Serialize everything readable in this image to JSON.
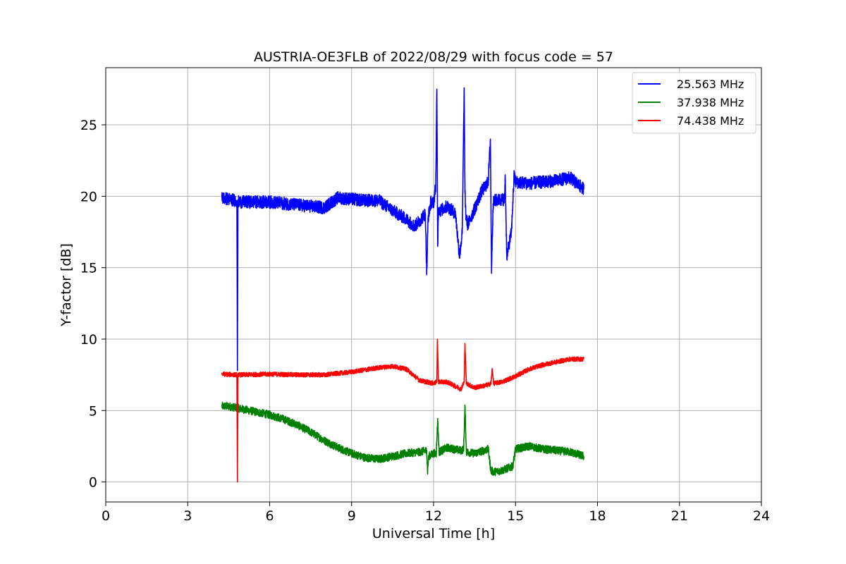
{
  "chart_data": {
    "type": "line",
    "title": "AUSTRIA-OE3FLB of 2022/08/29 with focus code = 57",
    "xlabel": "Universal Time [h]",
    "ylabel": "Y-factor [dB]",
    "xlim": [
      0,
      24
    ],
    "ylim": [
      -1.4,
      29
    ],
    "xticks": [
      0,
      3,
      6,
      9,
      12,
      15,
      18,
      21,
      24
    ],
    "yticks": [
      0,
      5,
      10,
      15,
      20,
      25
    ],
    "xtick_labels": [
      "0",
      "3",
      "6",
      "9",
      "12",
      "15",
      "18",
      "21",
      "24"
    ],
    "ytick_labels": [
      "0",
      "5",
      "10",
      "15",
      "20",
      "25"
    ],
    "grid": true,
    "legend_position": "top-right",
    "series": [
      {
        "name": "25.563 MHz",
        "color": "#0000ff",
        "noise": 0.45,
        "x": [
          4.25,
          4.5,
          4.8,
          4.82,
          4.84,
          4.86,
          5.0,
          6.0,
          7.0,
          8.0,
          8.5,
          9.0,
          9.5,
          10.0,
          10.5,
          11.0,
          11.3,
          11.5,
          11.7,
          11.75,
          11.8,
          11.9,
          12.0,
          12.08,
          12.12,
          12.15,
          12.18,
          12.25,
          12.5,
          12.8,
          12.95,
          13.05,
          13.12,
          13.15,
          13.18,
          13.25,
          13.5,
          13.75,
          14.0,
          14.08,
          14.12,
          14.18,
          14.25,
          14.6,
          14.62,
          14.68,
          14.75,
          14.85,
          14.95,
          15.0,
          15.5,
          16.5,
          17.0,
          17.3,
          17.5
        ],
        "y": [
          19.9,
          19.8,
          19.7,
          7.8,
          19.7,
          19.6,
          19.6,
          19.6,
          19.4,
          19.2,
          19.9,
          19.8,
          19.7,
          19.7,
          19.0,
          18.4,
          17.9,
          18.3,
          18.8,
          14.5,
          18.5,
          19.6,
          19.5,
          20.8,
          27.5,
          16.5,
          19.2,
          19.0,
          19.3,
          18.8,
          15.8,
          17.5,
          27.6,
          20.2,
          18.7,
          18.0,
          19.1,
          20.3,
          21.0,
          24.0,
          14.8,
          19.5,
          19.7,
          19.8,
          21.5,
          15.8,
          16.5,
          17.5,
          21.5,
          21.0,
          20.9,
          21.1,
          21.3,
          20.8,
          20.5
        ]
      },
      {
        "name": "37.938 MHz",
        "color": "#008000",
        "noise": 0.28,
        "x": [
          4.25,
          4.5,
          5.0,
          5.5,
          6.0,
          6.5,
          7.0,
          7.5,
          8.0,
          8.5,
          9.0,
          9.5,
          10.0,
          10.5,
          11.0,
          11.5,
          11.75,
          11.78,
          11.82,
          12.0,
          12.1,
          12.15,
          12.2,
          12.5,
          13.0,
          13.1,
          13.15,
          13.2,
          13.5,
          14.0,
          14.1,
          14.2,
          14.5,
          14.9,
          15.0,
          15.5,
          16.0,
          17.0,
          17.5
        ],
        "y": [
          5.3,
          5.3,
          5.1,
          4.9,
          4.7,
          4.4,
          4.0,
          3.5,
          2.9,
          2.4,
          2.0,
          1.7,
          1.6,
          1.8,
          2.0,
          2.1,
          2.2,
          0.7,
          1.8,
          2.0,
          2.0,
          4.4,
          2.1,
          2.4,
          2.2,
          2.3,
          5.3,
          2.1,
          2.0,
          2.3,
          0.8,
          0.7,
          0.8,
          1.1,
          2.3,
          2.5,
          2.3,
          2.1,
          1.8
        ]
      },
      {
        "name": "74.438 MHz",
        "color": "#ff0000",
        "noise": 0.16,
        "x": [
          4.25,
          4.8,
          4.82,
          4.84,
          4.86,
          5.0,
          6.0,
          7.0,
          8.0,
          9.0,
          10.0,
          10.5,
          11.0,
          11.5,
          12.0,
          12.12,
          12.14,
          12.18,
          12.5,
          13.0,
          13.12,
          13.15,
          13.2,
          13.5,
          14.0,
          14.1,
          14.15,
          14.2,
          14.5,
          15.0,
          15.5,
          16.0,
          17.0,
          17.5
        ],
        "y": [
          7.55,
          7.5,
          0.0,
          7.5,
          7.5,
          7.5,
          7.55,
          7.5,
          7.5,
          7.7,
          8.0,
          8.1,
          7.9,
          7.1,
          6.9,
          7.0,
          10.0,
          7.0,
          7.0,
          6.5,
          7.0,
          9.7,
          6.9,
          6.6,
          6.8,
          6.9,
          7.9,
          6.9,
          7.0,
          7.4,
          7.9,
          8.2,
          8.6,
          8.6
        ]
      }
    ]
  }
}
